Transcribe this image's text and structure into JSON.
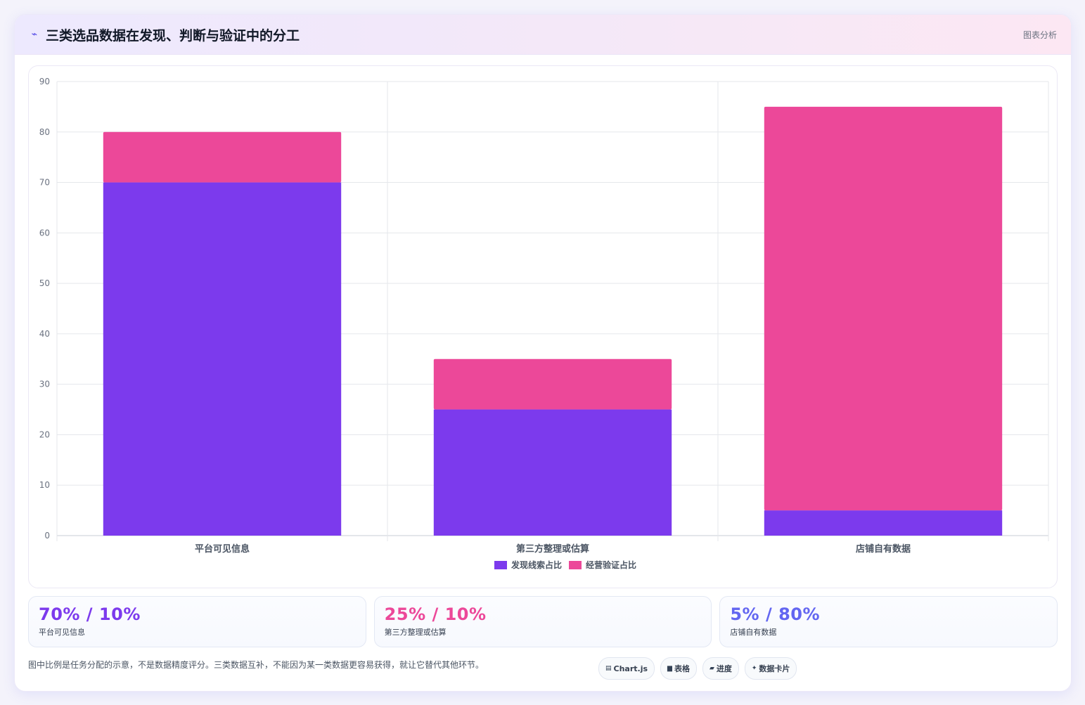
{
  "header": {
    "icon": "line-chart-icon",
    "title": "三类选品数据在发现、判断与验证中的分工",
    "tag": "图表分析"
  },
  "chart_data": {
    "type": "bar",
    "stacked": true,
    "categories": [
      "平台可见信息",
      "第三方整理或估算",
      "店铺自有数据"
    ],
    "series": [
      {
        "name": "发现线索占比",
        "values": [
          70,
          25,
          5
        ],
        "color": "#7c3aed"
      },
      {
        "name": "经营验证占比",
        "values": [
          10,
          10,
          80
        ],
        "color": "#ec4899"
      }
    ],
    "ylim": [
      0,
      90
    ],
    "yticks": [
      0,
      10,
      20,
      30,
      40,
      50,
      60,
      70,
      80,
      90
    ],
    "grid": true,
    "legend_position": "bottom"
  },
  "stats": [
    {
      "value": "70% / 10%",
      "label": "平台可见信息",
      "color": "#7c3aed"
    },
    {
      "value": "25% / 10%",
      "label": "第三方整理或估算",
      "color": "#ec4899"
    },
    {
      "value": "5% / 80%",
      "label": "店铺自有数据",
      "color": "#6366f1"
    }
  ],
  "footer": {
    "note": "图中比例是任务分配的示意，不是数据精度评分。三类数据互补，不能因为某一类数据更容易获得，就让它替代其他环节。",
    "chips": [
      {
        "icon": "chart-icon",
        "glyph": "▤",
        "label": "Chart.js"
      },
      {
        "icon": "table-icon",
        "glyph": "▆",
        "label": "表格"
      },
      {
        "icon": "progress-icon",
        "glyph": "▰",
        "label": "进度"
      },
      {
        "icon": "card-icon",
        "glyph": "✦",
        "label": "数据卡片"
      }
    ]
  }
}
